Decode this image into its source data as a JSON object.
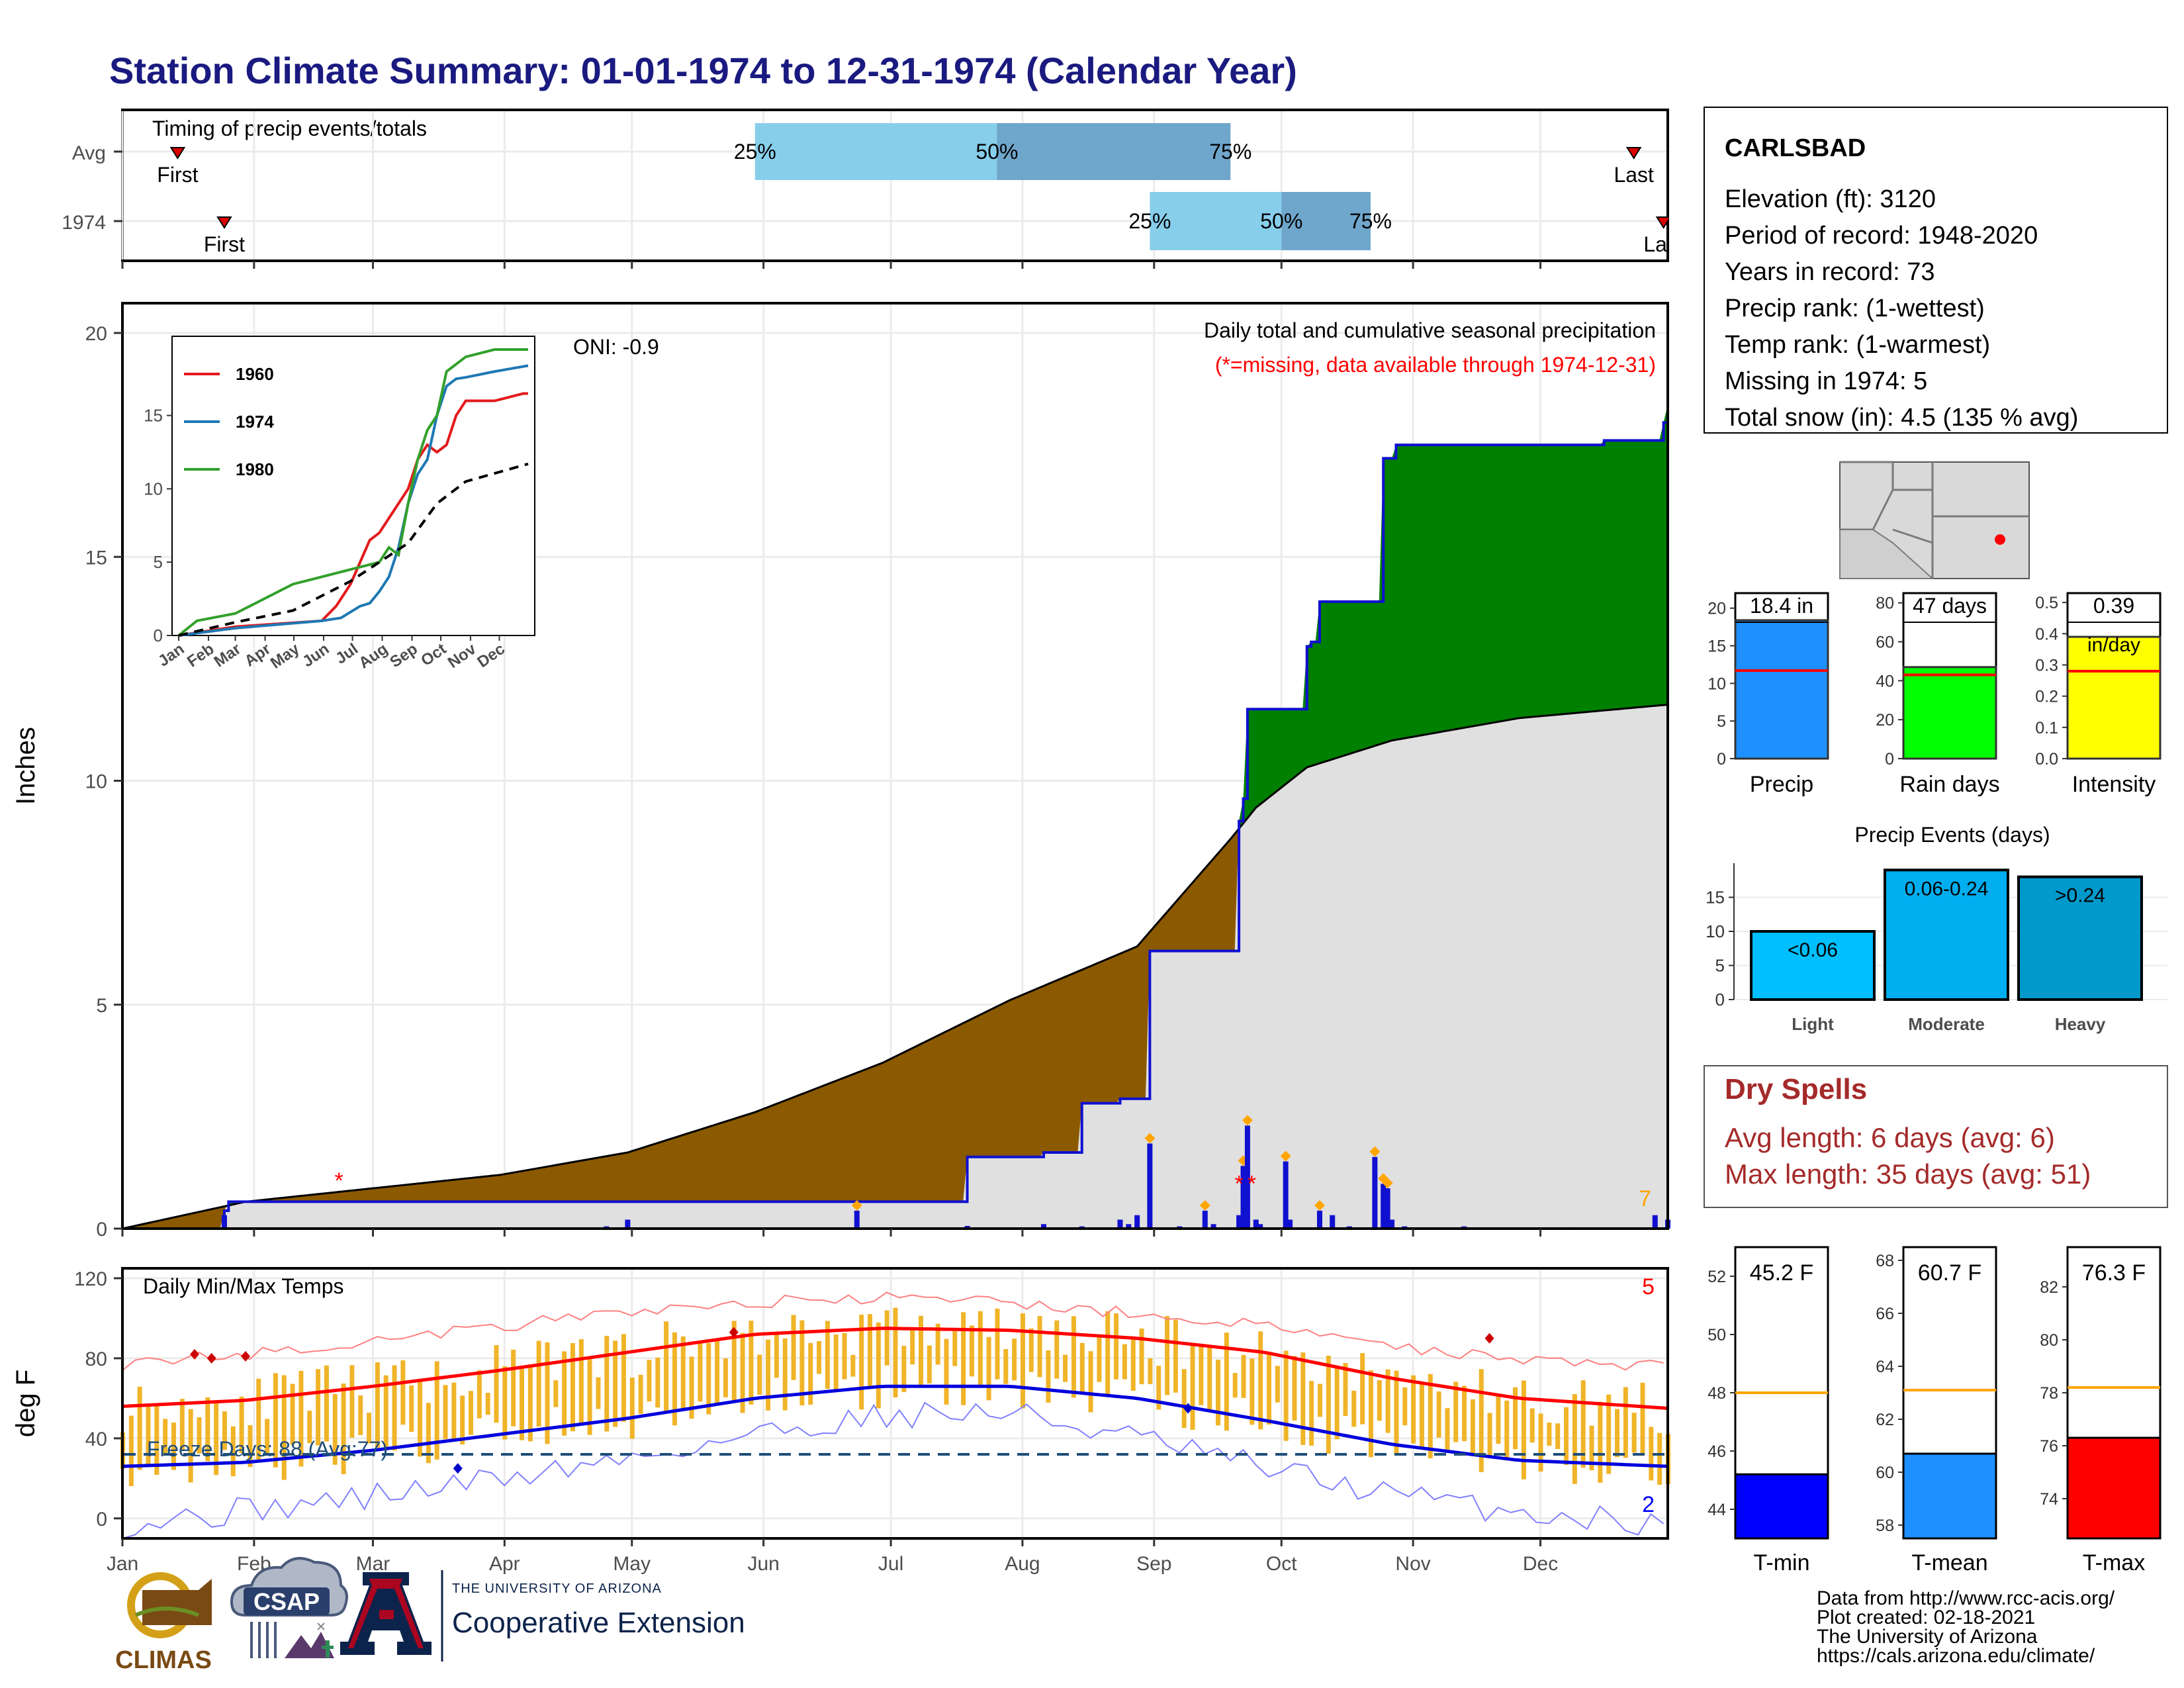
{
  "page_title": "Station Climate Summary: 01-01-1974 to 12-31-1974 (Calendar Year)",
  "colors": {
    "title": "#1a1a80",
    "q_light": "#87ceeb",
    "q_dark": "#6fa6cc",
    "cum_green": "#008000",
    "cum_brown": "#8b5a00",
    "cum_gray": "#e0e0e0",
    "line_blue": "#1010d0",
    "temp_bar": "#f0b429",
    "tmax_avg": "#ff0000",
    "tmin_avg": "#0000dd",
    "dry_red": "#a52a2a"
  },
  "months": [
    "Jan",
    "Feb",
    "Mar",
    "Apr",
    "May",
    "Jun",
    "Jul",
    "Aug",
    "Sep",
    "Oct",
    "Nov",
    "Dec"
  ],
  "timing_panel": {
    "title": "Timing of precip events/totals",
    "rows": [
      {
        "name": "Avg",
        "first_label": "First",
        "last_label": "Last",
        "first_day": 14,
        "last_day": 357,
        "q25": 150,
        "q50": 207,
        "q75": 262,
        "q25_label": "25%",
        "q50_label": "50%",
        "q75_label": "75%"
      },
      {
        "name": "1974",
        "first_label": "First",
        "last_label": "Last",
        "first_day": 25,
        "last_day": 364,
        "q25": 243,
        "q50": 274,
        "q75": 295,
        "q25_label": "25%",
        "q50_label": "50%",
        "q75_label": "75%"
      }
    ]
  },
  "precip_panel": {
    "title": "Daily total and cumulative seasonal precipitation",
    "subtitle": "(*=missing, data available through 1974-12-31)",
    "oni": "ONI: -0.9",
    "ylabel": "Inches",
    "missing_count": "7",
    "y_ticks": [
      "0",
      "5",
      "10",
      "15",
      "20"
    ],
    "ylim": [
      0,
      20
    ],
    "chart_data": {
      "type": "area",
      "series": [
        {
          "name": "cumulative 1974",
          "x": [
            1,
            25,
            26,
            50,
            200,
            218,
            227,
            236,
            243,
            256,
            264,
            265,
            266,
            275,
            280,
            281,
            283,
            290,
            298,
            299,
            301,
            305,
            350,
            364,
            365
          ],
          "y": [
            0,
            0.4,
            0.6,
            0.6,
            1.6,
            1.7,
            2.8,
            2.9,
            6.2,
            6.2,
            9.1,
            9.6,
            11.6,
            11.6,
            13.0,
            13.1,
            14.0,
            14.0,
            17.2,
            17.2,
            17.5,
            17.5,
            17.6,
            18.0,
            18.4
          ]
        },
        {
          "name": "average cumulative",
          "x": [
            1,
            30,
            60,
            90,
            120,
            150,
            180,
            210,
            240,
            262,
            268,
            280,
            300,
            330,
            365
          ],
          "y": [
            0,
            0.6,
            0.9,
            1.2,
            1.7,
            2.6,
            3.7,
            5.1,
            6.3,
            8.7,
            9.4,
            10.3,
            10.9,
            11.4,
            11.7
          ]
        },
        {
          "name": "daily precip",
          "x": [
            25,
            50,
            115,
            120,
            174,
            200,
            218,
            227,
            236,
            238,
            240,
            243,
            250,
            256,
            258,
            264,
            265,
            266,
            268,
            269,
            275,
            276,
            283,
            286,
            290,
            296,
            298,
            299,
            300,
            303,
            317,
            342,
            362,
            365
          ],
          "y": [
            0.3,
            0.03,
            0.05,
            0.2,
            0.4,
            0.06,
            0.1,
            0.05,
            0.2,
            0.1,
            0.3,
            1.9,
            0.05,
            0.4,
            0.1,
            0.3,
            1.4,
            2.3,
            0.2,
            0.1,
            1.5,
            0.2,
            0.4,
            0.3,
            0.05,
            1.6,
            1.0,
            0.9,
            0.2,
            0.05,
            0.05,
            0.03,
            0.3,
            0.2
          ]
        }
      ],
      "xlabel": "",
      "ylabel": "Inches",
      "ylim": [
        0,
        20
      ]
    }
  },
  "inset": {
    "y_ticks": [
      "0",
      "5",
      "10",
      "15"
    ],
    "x_ticks": [
      "Jan",
      "Feb",
      "Mar",
      "Apr",
      "May",
      "Jun",
      "Jul",
      "Aug",
      "Sep",
      "Oct",
      "Nov",
      "Dec"
    ],
    "legend": [
      {
        "name": "1960",
        "color": "#e31a1c"
      },
      {
        "name": "1974",
        "color": "#1f78b4"
      },
      {
        "name": "1980",
        "color": "#33a02c"
      }
    ],
    "chart_data": {
      "type": "line",
      "series": [
        {
          "name": "1960",
          "x": [
            1,
            60,
            150,
            165,
            180,
            190,
            200,
            210,
            220,
            230,
            240,
            250,
            260,
            270,
            280,
            290,
            300,
            330,
            360,
            365
          ],
          "y": [
            0,
            0.6,
            1,
            2,
            3.5,
            5,
            6.5,
            7,
            8,
            9,
            10,
            12,
            13,
            12.5,
            13,
            15,
            16,
            16,
            16.5,
            16.5
          ]
        },
        {
          "name": "1974",
          "x": [
            1,
            60,
            150,
            170,
            190,
            200,
            210,
            220,
            230,
            240,
            250,
            260,
            270,
            280,
            290,
            300,
            330,
            365
          ],
          "y": [
            0,
            0.5,
            1,
            1.2,
            2,
            2.2,
            3,
            4,
            6,
            9,
            11,
            12,
            15,
            17,
            17.5,
            17.6,
            18,
            18.4
          ]
        },
        {
          "name": "1980",
          "x": [
            1,
            20,
            60,
            90,
            120,
            150,
            180,
            210,
            220,
            230,
            240,
            250,
            260,
            270,
            280,
            290,
            300,
            330,
            365
          ],
          "y": [
            0,
            1,
            1.5,
            2.5,
            3.5,
            4,
            4.5,
            5,
            6,
            5.5,
            9,
            12,
            14,
            15,
            18,
            18.5,
            19,
            19.5,
            19.5
          ]
        },
        {
          "name": "average",
          "x": [
            1,
            60,
            120,
            180,
            240,
            270,
            300,
            365
          ],
          "y": [
            0,
            0.9,
            1.7,
            3.7,
            6.3,
            9,
            10.5,
            11.7
          ]
        }
      ],
      "ylim": [
        0,
        19.5
      ]
    }
  },
  "temp_panel": {
    "title": "Daily Min/Max Temps",
    "ylabel": "deg F",
    "freeze_label": "Freeze Days: 88 (Avg:77)",
    "record_high_count": "5",
    "record_low_count": "2",
    "y_ticks": [
      "0",
      "40",
      "80",
      "120"
    ],
    "chart_data": {
      "type": "line",
      "series": [
        {
          "name": "avg max",
          "x": [
            1,
            30,
            60,
            90,
            120,
            150,
            180,
            210,
            240,
            270,
            300,
            330,
            365
          ],
          "y": [
            56,
            59,
            66,
            74,
            83,
            92,
            95,
            94,
            90,
            83,
            70,
            60,
            55
          ]
        },
        {
          "name": "avg min",
          "x": [
            1,
            30,
            60,
            90,
            120,
            150,
            180,
            210,
            240,
            270,
            300,
            330,
            365
          ],
          "y": [
            26,
            28,
            34,
            42,
            50,
            60,
            66,
            66,
            60,
            49,
            37,
            29,
            26
          ]
        },
        {
          "name": "record max",
          "x": [
            1,
            30,
            60,
            90,
            120,
            150,
            180,
            210,
            240,
            270,
            300,
            330,
            365
          ],
          "y": [
            77,
            82,
            89,
            96,
            103,
            108,
            110,
            108,
            102,
            96,
            86,
            80,
            76
          ]
        },
        {
          "name": "record min",
          "x": [
            1,
            30,
            60,
            90,
            120,
            150,
            180,
            210,
            240,
            270,
            300,
            330,
            365
          ],
          "y": [
            -3,
            4,
            11,
            20,
            30,
            42,
            52,
            53,
            40,
            25,
            12,
            3,
            -3
          ]
        }
      ],
      "freeze_line": 32,
      "ylim": [
        -10,
        120
      ]
    }
  },
  "station": {
    "name": "CARLSBAD",
    "lines": [
      "Elevation (ft): 3120",
      "Period of record: 1948-2020",
      "Years in record: 73",
      "Precip rank:  (1-wettest)",
      "Temp rank:  (1-warmest)",
      "Missing in 1974: 5",
      "Total snow (in): 4.5 (135 % avg)"
    ]
  },
  "bar_charts": [
    {
      "xlabel": "Precip",
      "value_label": "18.4 in",
      "value": 18.4,
      "avg": 11.7,
      "ylim": [
        0,
        22
      ],
      "ticks": [
        0,
        5,
        10,
        15,
        20
      ],
      "color": "#1e90ff",
      "unit": ""
    },
    {
      "xlabel": "Rain days",
      "value_label": "47 days",
      "value": 47,
      "avg": 43,
      "ylim": [
        0,
        85
      ],
      "ticks": [
        0,
        20,
        40,
        60,
        80
      ],
      "color": "#00ff00",
      "unit": ""
    },
    {
      "xlabel": "Intensity",
      "value_label": "0.39",
      "value": 0.39,
      "avg": 0.28,
      "ylim": [
        0,
        0.53
      ],
      "ticks": [
        0.0,
        0.1,
        0.2,
        0.3,
        0.4,
        0.5
      ],
      "color": "#ffff00",
      "unit": "in/day"
    }
  ],
  "precip_events": {
    "title": "Precip Events (days)",
    "chart_data": {
      "type": "bar",
      "categories": [
        "Light",
        "Moderate",
        "Heavy"
      ],
      "value_labels": [
        "<0.06",
        "0.06-0.24",
        ">0.24"
      ],
      "values": [
        10,
        19,
        18
      ],
      "colors": [
        "#00bfff",
        "#00aeef",
        "#0099cc"
      ],
      "ylim": [
        0,
        20
      ],
      "ticks": [
        0,
        5,
        10,
        15
      ]
    }
  },
  "dry_spells": {
    "title": "Dry Spells",
    "avg_line": "Avg length: 6 days (avg: 6)",
    "max_line": "Max length: 35 days (avg: 51)"
  },
  "temp_bars": [
    {
      "xlabel": "T-min",
      "value_label": "45.2 F",
      "value": 45.2,
      "avg": 48.0,
      "ylim": [
        43,
        53
      ],
      "ticks": [
        44,
        46,
        48,
        50,
        52
      ],
      "color": "#0000ff"
    },
    {
      "xlabel": "T-mean",
      "value_label": "60.7 F",
      "value": 60.7,
      "avg": 63.1,
      "ylim": [
        57.5,
        68.5
      ],
      "ticks": [
        58,
        60,
        62,
        64,
        66,
        68
      ],
      "color": "#1e90ff"
    },
    {
      "xlabel": "T-max",
      "value_label": "76.3 F",
      "value": 76.3,
      "avg": 78.2,
      "ylim": [
        72.5,
        83.5
      ],
      "ticks": [
        74,
        76,
        78,
        80,
        82
      ],
      "color": "#ff0000"
    }
  ],
  "footer": {
    "lines": [
      "Data from http://www.rcc-acis.org/",
      "Plot created: 02-18-2021",
      "The University of Arizona",
      "https://cals.arizona.edu/climate/"
    ],
    "logos": {
      "climas": "CLIMAS",
      "csap": "CSAP",
      "ua_small": "THE UNIVERSITY OF ARIZONA",
      "ua_big": "Cooperative Extension"
    }
  }
}
